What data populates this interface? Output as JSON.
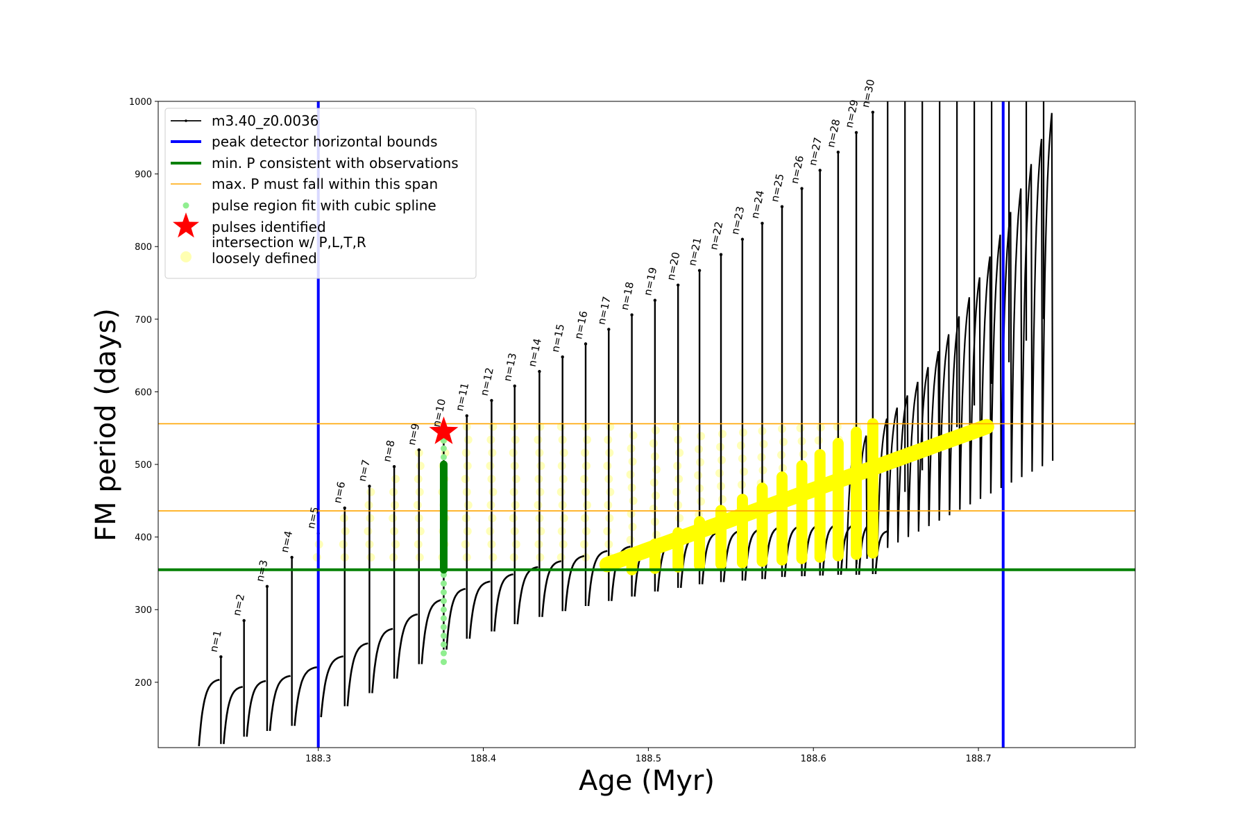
{
  "chart_data": {
    "type": "line",
    "xlabel": "Age (Myr)",
    "ylabel": "FM period (days)",
    "xlim": [
      188.203,
      188.795
    ],
    "ylim": [
      110,
      1000
    ],
    "x_ticks": [
      188.3,
      188.4,
      188.5,
      188.6,
      188.7
    ],
    "y_ticks": [
      200,
      300,
      400,
      500,
      600,
      700,
      800,
      900,
      1000
    ],
    "grid": false,
    "legend_position": "upper-left",
    "series": [
      {
        "name": "m3.40_z0.0036",
        "color": "#000000",
        "style": "line-with-small-markers",
        "pulse_ages": [
          188.241,
          188.255,
          188.269,
          188.284,
          188.3,
          188.316,
          188.331,
          188.346,
          188.361,
          188.376,
          188.39,
          188.405,
          188.419,
          188.434,
          188.448,
          188.462,
          188.476,
          188.49,
          188.504,
          188.518,
          188.531,
          188.544,
          188.557,
          188.569,
          188.581,
          188.593,
          188.604,
          188.615,
          188.626,
          188.636
        ],
        "pulse_peak_periods": [
          235,
          285,
          332,
          372,
          405,
          440,
          470,
          497,
          520,
          545,
          567,
          588,
          608,
          628,
          648,
          666,
          686,
          706,
          726,
          747,
          767,
          789,
          810,
          832,
          855,
          880,
          905,
          930,
          957,
          985
        ],
        "pulse_trough_periods": [
          115,
          125,
          133,
          140,
          152,
          167,
          185,
          205,
          225,
          245,
          260,
          270,
          280,
          290,
          298,
          305,
          312,
          318,
          325,
          330,
          335,
          338,
          340,
          342,
          345,
          346,
          347,
          348,
          348,
          349
        ]
      },
      {
        "name": "peak detector horizontal bounds",
        "color": "#0000ff",
        "style": "vertical-lines",
        "x": [
          188.3,
          188.715
        ]
      },
      {
        "name": "min. P consistent with observations",
        "color": "#008000",
        "style": "horizontal-line",
        "y": [
          355
        ]
      },
      {
        "name": "max. P must fall within this span",
        "color": "#ffa500",
        "style": "horizontal-lines",
        "y": [
          436,
          556
        ]
      },
      {
        "name": "pulse region fit with cubic spline",
        "color": "#90ee90",
        "style": "points",
        "x": [
          188.376
        ],
        "y_range": [
          228,
          545
        ]
      },
      {
        "name": "pulses identified",
        "color": "#ff0000",
        "style": "star",
        "x": [
          188.376
        ],
        "y": [
          545
        ]
      },
      {
        "name": "intersection w/ P,L,T,R\nloosely defined",
        "color": "#ffff00",
        "style": "highlight"
      }
    ],
    "pulse_labels": [
      "n=1",
      "n=2",
      "n=3",
      "n=4",
      "n=5",
      "n=6",
      "n=7",
      "n=8",
      "n=9",
      "n=10",
      "n=11",
      "n=12",
      "n=13",
      "n=14",
      "n=15",
      "n=16",
      "n=17",
      "n=18",
      "n=19",
      "n=20",
      "n=21",
      "n=22",
      "n=23",
      "n=24",
      "n=25",
      "n=26",
      "n=27",
      "n=28",
      "n=29",
      "n=30"
    ]
  }
}
